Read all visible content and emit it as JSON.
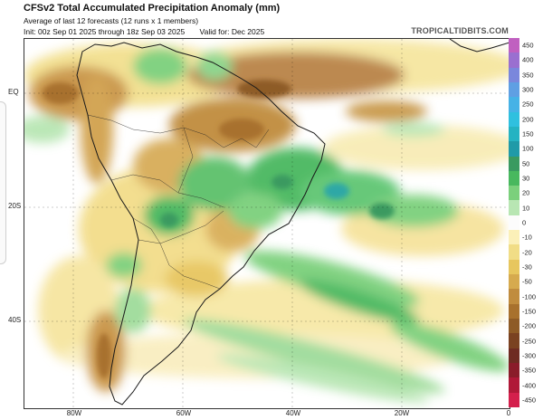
{
  "header": {
    "title": "CFSv2 Total Accumulated Precipitation Anomaly (mm)",
    "subtitle": "Average of last 12 forecasts (12 runs x 1 members)",
    "init": "Init: 00z Sep 01 2025 through 18z Sep 03 2025",
    "valid": "Valid for: Dec 2025",
    "brand": "TROPICALTIDBITS.COM"
  },
  "axes": {
    "lat_labels": [
      "EQ",
      "20S",
      "40S"
    ],
    "lon_labels": [
      "80W",
      "60W",
      "40W",
      "20W",
      "0"
    ]
  },
  "legend": {
    "labels": [
      "450",
      "400",
      "350",
      "300",
      "250",
      "200",
      "150",
      "100",
      "50",
      "30",
      "20",
      "10",
      "0",
      "-10",
      "-20",
      "-30",
      "-50",
      "-100",
      "-150",
      "-200",
      "-250",
      "-300",
      "-350",
      "-400",
      "-450"
    ],
    "colors": [
      "#c060c0",
      "#9a6fd0",
      "#7a87dc",
      "#5f9fe3",
      "#46b2e6",
      "#2fc0df",
      "#25b3c2",
      "#1f9aa8",
      "#3a9a60",
      "#48b85e",
      "#7bd07c",
      "#b8e6b3",
      "#ffffff",
      "#fbf0b8",
      "#f1dd86",
      "#e7c65e",
      "#d6aa4e",
      "#c08c3e",
      "#a8712d",
      "#8e5b26",
      "#7a4221",
      "#6e2b22",
      "#8a1c2a",
      "#b01838",
      "#d41f4c"
    ]
  }
}
